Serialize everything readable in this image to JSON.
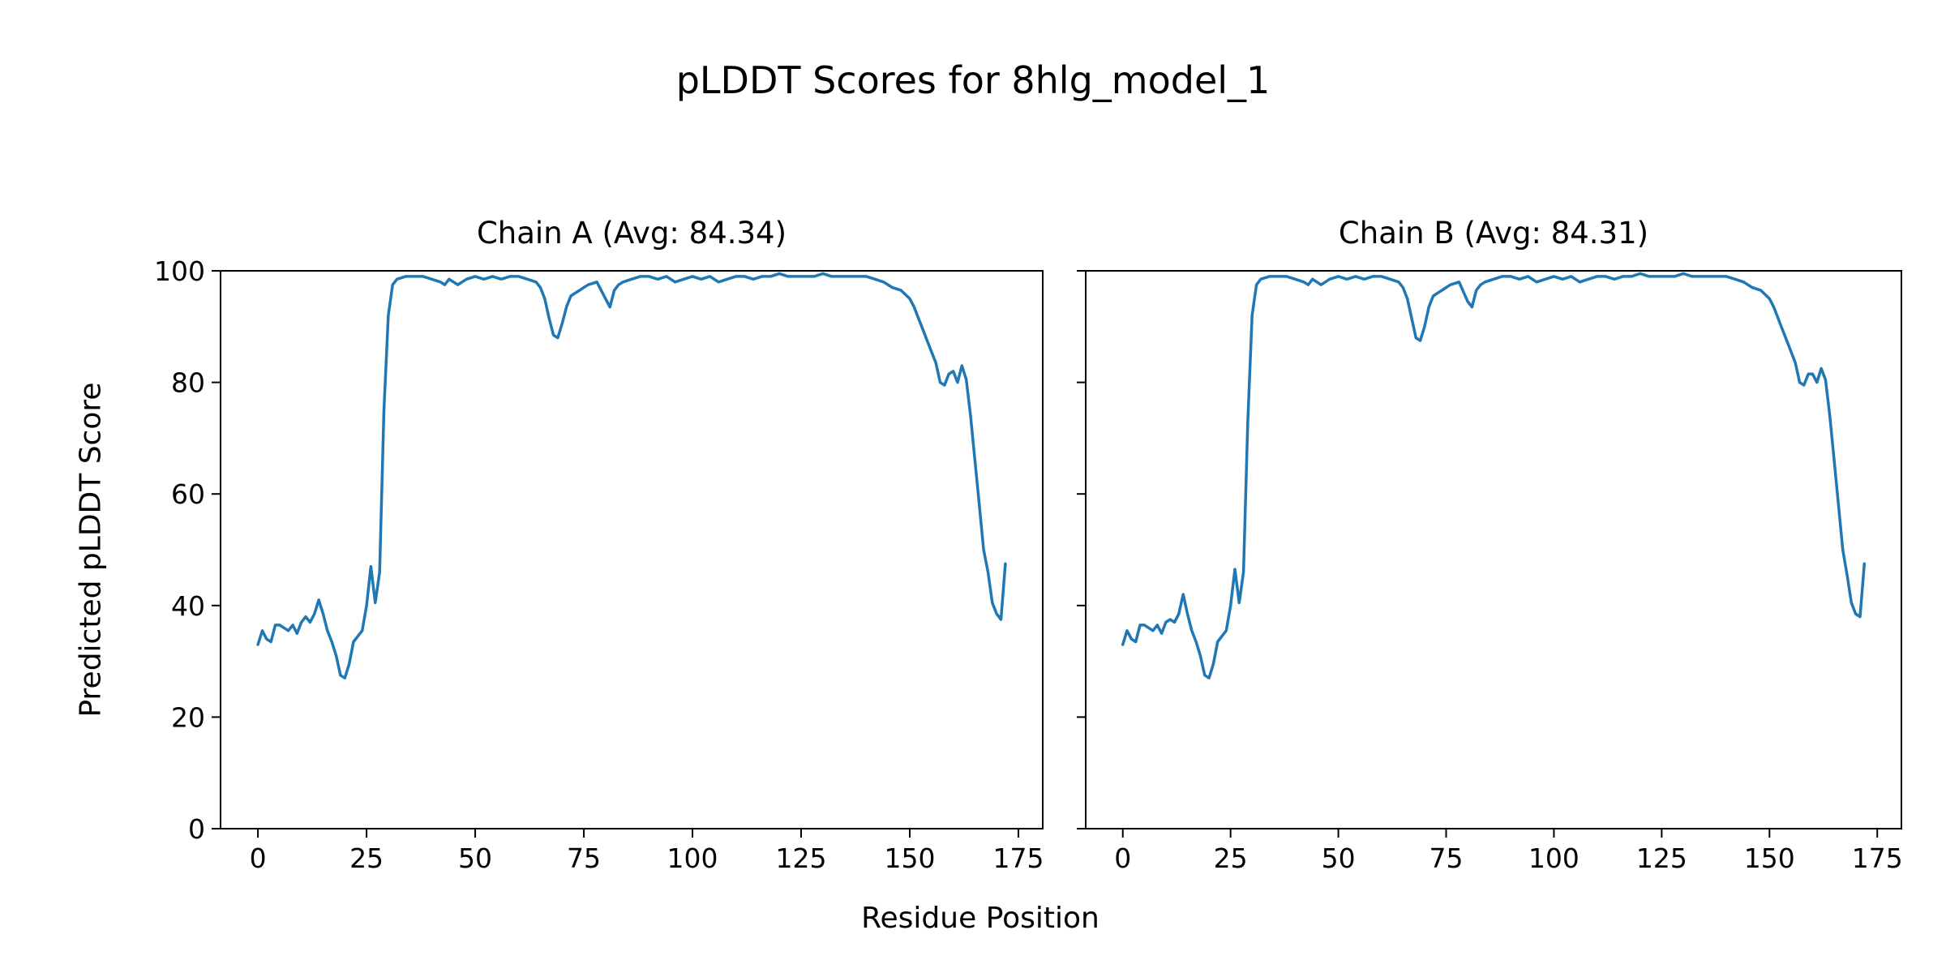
{
  "figure": {
    "title": "pLDDT Scores for 8hlg_model_1",
    "xlabel": "Residue Position",
    "ylabel": "Predicted pLDDT Score",
    "line_color": "#1f77b4",
    "background": "#ffffff",
    "spine_color": "#000000"
  },
  "chart_data": [
    {
      "type": "line",
      "title": "Chain A (Avg: 84.34)",
      "chain": "A",
      "avg": 84.34,
      "xlim": [
        -8.6,
        180.6
      ],
      "ylim": [
        0,
        100
      ],
      "xticks": [
        0,
        25,
        50,
        75,
        100,
        125,
        150,
        175
      ],
      "yticks": [
        0,
        20,
        40,
        60,
        80,
        100
      ],
      "show_ytick_labels": true,
      "grid": false,
      "legend": "none",
      "x": [
        0,
        1,
        2,
        3,
        4,
        5,
        6,
        7,
        8,
        9,
        10,
        11,
        12,
        13,
        14,
        15,
        16,
        17,
        18,
        19,
        20,
        21,
        22,
        23,
        24,
        25,
        26,
        27,
        28,
        29,
        30,
        31,
        32,
        34,
        36,
        38,
        40,
        42,
        43,
        44,
        46,
        48,
        50,
        52,
        54,
        56,
        58,
        60,
        62,
        64,
        65,
        66,
        67,
        68,
        69,
        70,
        71,
        72,
        73,
        74,
        75,
        76,
        78,
        80,
        81,
        82,
        83,
        84,
        86,
        88,
        90,
        92,
        94,
        96,
        98,
        100,
        102,
        104,
        106,
        108,
        110,
        112,
        114,
        116,
        118,
        120,
        122,
        124,
        126,
        128,
        130,
        132,
        134,
        136,
        138,
        140,
        142,
        144,
        146,
        148,
        150,
        151,
        152,
        153,
        154,
        155,
        156,
        157,
        158,
        159,
        160,
        161,
        162,
        163,
        164,
        165,
        166,
        167,
        168,
        169,
        170,
        171,
        172
      ],
      "y": [
        33,
        35.5,
        34,
        33.5,
        36.5,
        36.5,
        36,
        35.5,
        36.5,
        35,
        37,
        38,
        37,
        38.5,
        41,
        38.5,
        35.5,
        33.5,
        31,
        27.5,
        27,
        29.5,
        33.5,
        34.5,
        35.5,
        40,
        47,
        40.5,
        46,
        75,
        92,
        97.5,
        98.5,
        99,
        99,
        99,
        98.5,
        98,
        97.5,
        98.5,
        97.5,
        98.5,
        99,
        98.5,
        99,
        98.5,
        99,
        99,
        98.5,
        98,
        97,
        95,
        91.5,
        88.5,
        88,
        90.5,
        93.5,
        95.5,
        96,
        96.5,
        97,
        97.5,
        98,
        95,
        93.5,
        96.5,
        97.5,
        98,
        98.5,
        99,
        99,
        98.5,
        99,
        98,
        98.5,
        99,
        98.5,
        99,
        98,
        98.5,
        99,
        99,
        98.5,
        99,
        99,
        99.5,
        99,
        99,
        99,
        99,
        99.5,
        99,
        99,
        99,
        99,
        99,
        98.5,
        98,
        97,
        96.5,
        95,
        93.5,
        91.5,
        89.5,
        87.5,
        85.5,
        83.5,
        80,
        79.5,
        81.5,
        82,
        80,
        83,
        80.5,
        74,
        66,
        58,
        50,
        46,
        40.5,
        38.5,
        37.5,
        47.5
      ]
    },
    {
      "type": "line",
      "title": "Chain B (Avg: 84.31)",
      "chain": "B",
      "avg": 84.31,
      "xlim": [
        -8.6,
        180.6
      ],
      "ylim": [
        0,
        100
      ],
      "xticks": [
        0,
        25,
        50,
        75,
        100,
        125,
        150,
        175
      ],
      "yticks": [
        0,
        20,
        40,
        60,
        80,
        100
      ],
      "show_ytick_labels": false,
      "grid": false,
      "legend": "none",
      "x": [
        0,
        1,
        2,
        3,
        4,
        5,
        6,
        7,
        8,
        9,
        10,
        11,
        12,
        13,
        14,
        15,
        16,
        17,
        18,
        19,
        20,
        21,
        22,
        23,
        24,
        25,
        26,
        27,
        28,
        29,
        30,
        31,
        32,
        34,
        36,
        38,
        40,
        42,
        43,
        44,
        46,
        48,
        50,
        52,
        54,
        56,
        58,
        60,
        62,
        64,
        65,
        66,
        67,
        68,
        69,
        70,
        71,
        72,
        73,
        74,
        75,
        76,
        78,
        80,
        81,
        82,
        83,
        84,
        86,
        88,
        90,
        92,
        94,
        96,
        98,
        100,
        102,
        104,
        106,
        108,
        110,
        112,
        114,
        116,
        118,
        120,
        122,
        124,
        126,
        128,
        130,
        132,
        134,
        136,
        138,
        140,
        142,
        144,
        146,
        148,
        150,
        151,
        152,
        153,
        154,
        155,
        156,
        157,
        158,
        159,
        160,
        161,
        162,
        163,
        164,
        165,
        166,
        167,
        168,
        169,
        170,
        171,
        172
      ],
      "y": [
        33,
        35.5,
        34,
        33.5,
        36.5,
        36.5,
        36,
        35.5,
        36.5,
        35,
        37,
        37.5,
        37,
        38.5,
        42,
        38.5,
        35.5,
        33.5,
        31,
        27.5,
        27,
        29.5,
        33.5,
        34.5,
        35.5,
        40,
        46.5,
        40.5,
        46,
        73,
        92,
        97.5,
        98.5,
        99,
        99,
        99,
        98.5,
        98,
        97.5,
        98.5,
        97.5,
        98.5,
        99,
        98.5,
        99,
        98.5,
        99,
        99,
        98.5,
        98,
        97,
        95,
        91.5,
        88,
        87.5,
        90,
        93.5,
        95.5,
        96,
        96.5,
        97,
        97.5,
        98,
        94.5,
        93.5,
        96.5,
        97.5,
        98,
        98.5,
        99,
        99,
        98.5,
        99,
        98,
        98.5,
        99,
        98.5,
        99,
        98,
        98.5,
        99,
        99,
        98.5,
        99,
        99,
        99.5,
        99,
        99,
        99,
        99,
        99.5,
        99,
        99,
        99,
        99,
        99,
        98.5,
        98,
        97,
        96.5,
        95,
        93.5,
        91.5,
        89.5,
        87.5,
        85.5,
        83.5,
        80,
        79.5,
        81.5,
        81.5,
        80,
        82.5,
        80.5,
        74,
        66,
        58,
        50,
        45.5,
        40.5,
        38.5,
        38,
        47.5
      ]
    }
  ]
}
